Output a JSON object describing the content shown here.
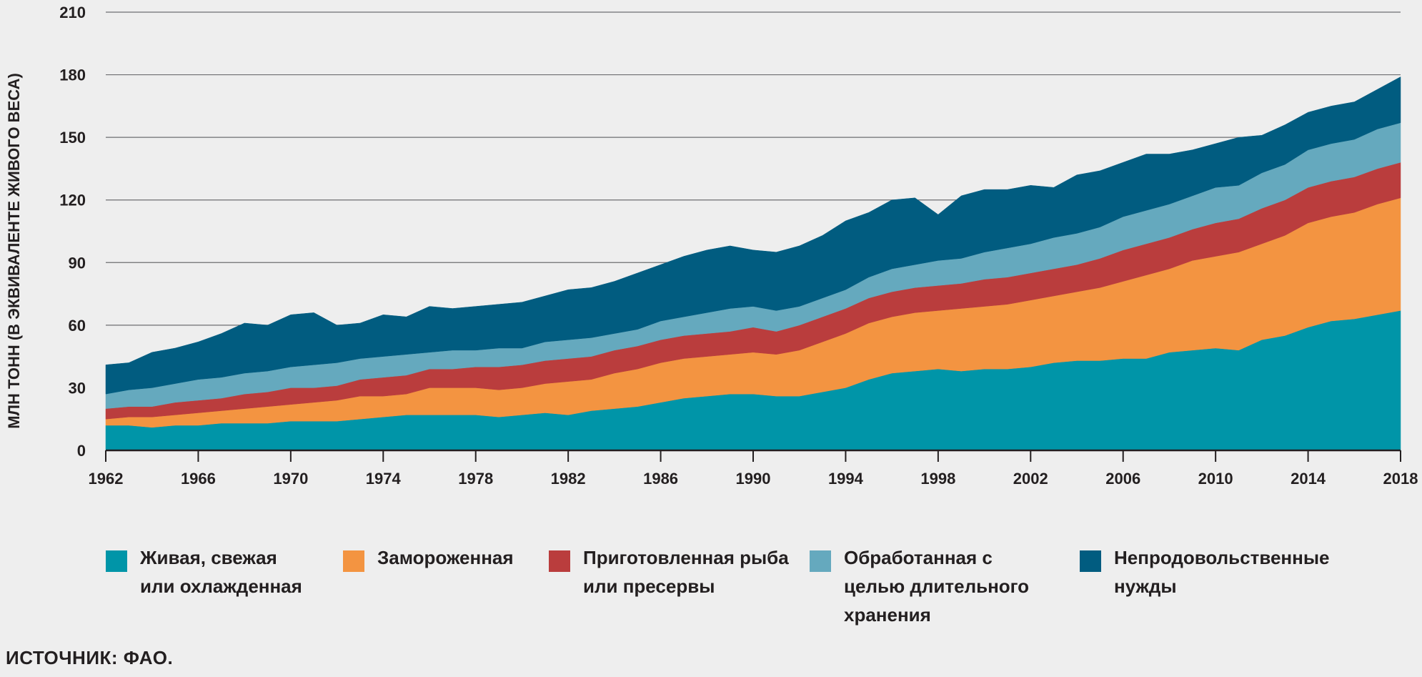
{
  "chart_data": {
    "type": "area",
    "stacked": true,
    "ylabel": "МЛН ТОНН (В ЭКВИВАЛЕНТЕ ЖИВОГО ВЕСА)",
    "ylim": [
      0,
      210
    ],
    "yticks": [
      0,
      30,
      60,
      90,
      120,
      150,
      180,
      210
    ],
    "xlim": [
      1962,
      2018
    ],
    "xticks": [
      1962,
      1966,
      1970,
      1974,
      1978,
      1982,
      1986,
      1990,
      1994,
      1998,
      2002,
      2006,
      2010,
      2014,
      2018
    ],
    "grid": "horizontal",
    "legend_position": "bottom",
    "x": [
      1962,
      1963,
      1964,
      1965,
      1966,
      1967,
      1968,
      1969,
      1970,
      1971,
      1972,
      1973,
      1974,
      1975,
      1976,
      1977,
      1978,
      1979,
      1980,
      1981,
      1982,
      1983,
      1984,
      1985,
      1986,
      1987,
      1988,
      1989,
      1990,
      1991,
      1992,
      1993,
      1994,
      1995,
      1996,
      1997,
      1998,
      1999,
      2000,
      2001,
      2002,
      2003,
      2004,
      2005,
      2006,
      2007,
      2008,
      2009,
      2010,
      2011,
      2012,
      2013,
      2014,
      2015,
      2016,
      2017,
      2018
    ],
    "series": [
      {
        "name": "Живая, свежая или охлажденная",
        "color": "#0095a8",
        "values": [
          12,
          12,
          11,
          12,
          12,
          13,
          13,
          13,
          14,
          14,
          14,
          15,
          16,
          17,
          17,
          17,
          17,
          16,
          17,
          18,
          17,
          19,
          20,
          21,
          23,
          25,
          26,
          27,
          27,
          26,
          26,
          28,
          30,
          34,
          37,
          38,
          39,
          38,
          39,
          39,
          40,
          42,
          43,
          43,
          44,
          44,
          47,
          48,
          49,
          48,
          53,
          55,
          59,
          62,
          63,
          65,
          67
        ]
      },
      {
        "name": "Замороженная",
        "color": "#f39441",
        "values": [
          3,
          4,
          5,
          5,
          6,
          6,
          7,
          8,
          8,
          9,
          10,
          11,
          10,
          10,
          13,
          13,
          13,
          13,
          13,
          14,
          16,
          15,
          17,
          18,
          19,
          19,
          19,
          19,
          20,
          20,
          22,
          24,
          26,
          27,
          27,
          28,
          28,
          30,
          30,
          31,
          32,
          32,
          33,
          35,
          37,
          40,
          40,
          43,
          44,
          47,
          46,
          48,
          50,
          50,
          51,
          53,
          54
        ]
      },
      {
        "name": "Приготовленная рыба или пресервы",
        "color": "#ba3d3d",
        "values": [
          5,
          5,
          5,
          6,
          6,
          6,
          7,
          7,
          8,
          7,
          7,
          8,
          9,
          9,
          9,
          9,
          10,
          11,
          11,
          11,
          11,
          11,
          11,
          11,
          11,
          11,
          11,
          11,
          12,
          11,
          12,
          12,
          12,
          12,
          12,
          12,
          12,
          12,
          13,
          13,
          13,
          13,
          13,
          14,
          15,
          15,
          15,
          15,
          16,
          16,
          17,
          17,
          17,
          17,
          17,
          17,
          17
        ]
      },
      {
        "name": "Обработанная с целью длительного хранения",
        "color": "#65a9be",
        "values": [
          7,
          8,
          9,
          9,
          10,
          10,
          10,
          10,
          10,
          11,
          11,
          10,
          10,
          10,
          8,
          9,
          8,
          9,
          8,
          9,
          9,
          9,
          8,
          8,
          9,
          9,
          10,
          11,
          10,
          10,
          9,
          9,
          9,
          10,
          11,
          11,
          12,
          12,
          13,
          14,
          14,
          15,
          15,
          15,
          16,
          16,
          16,
          16,
          17,
          16,
          17,
          17,
          18,
          18,
          18,
          19,
          19
        ]
      },
      {
        "name": "Непродовольственные нужды",
        "color": "#015c80",
        "values": [
          14,
          13,
          17,
          17,
          18,
          21,
          24,
          22,
          25,
          25,
          18,
          17,
          20,
          18,
          22,
          20,
          21,
          21,
          22,
          22,
          24,
          24,
          25,
          27,
          27,
          29,
          30,
          30,
          27,
          28,
          29,
          30,
          33,
          31,
          33,
          32,
          22,
          30,
          30,
          28,
          28,
          24,
          28,
          27,
          26,
          27,
          24,
          22,
          21,
          23,
          18,
          19,
          18,
          18,
          18,
          19,
          22
        ]
      }
    ]
  },
  "legend": {
    "items": [
      {
        "label": "Живая, свежая или охлажденная",
        "color": "#0095a8"
      },
      {
        "label": "Замороженная",
        "color": "#f39441"
      },
      {
        "label": "Приготовленная рыба или пресервы",
        "color": "#ba3d3d"
      },
      {
        "label": "Обработанная с целью длительного хранения",
        "color": "#65a9be"
      },
      {
        "label": "Непродовольственные нужды",
        "color": "#015c80"
      }
    ]
  },
  "source": "ИСТОЧНИК: ФАО."
}
